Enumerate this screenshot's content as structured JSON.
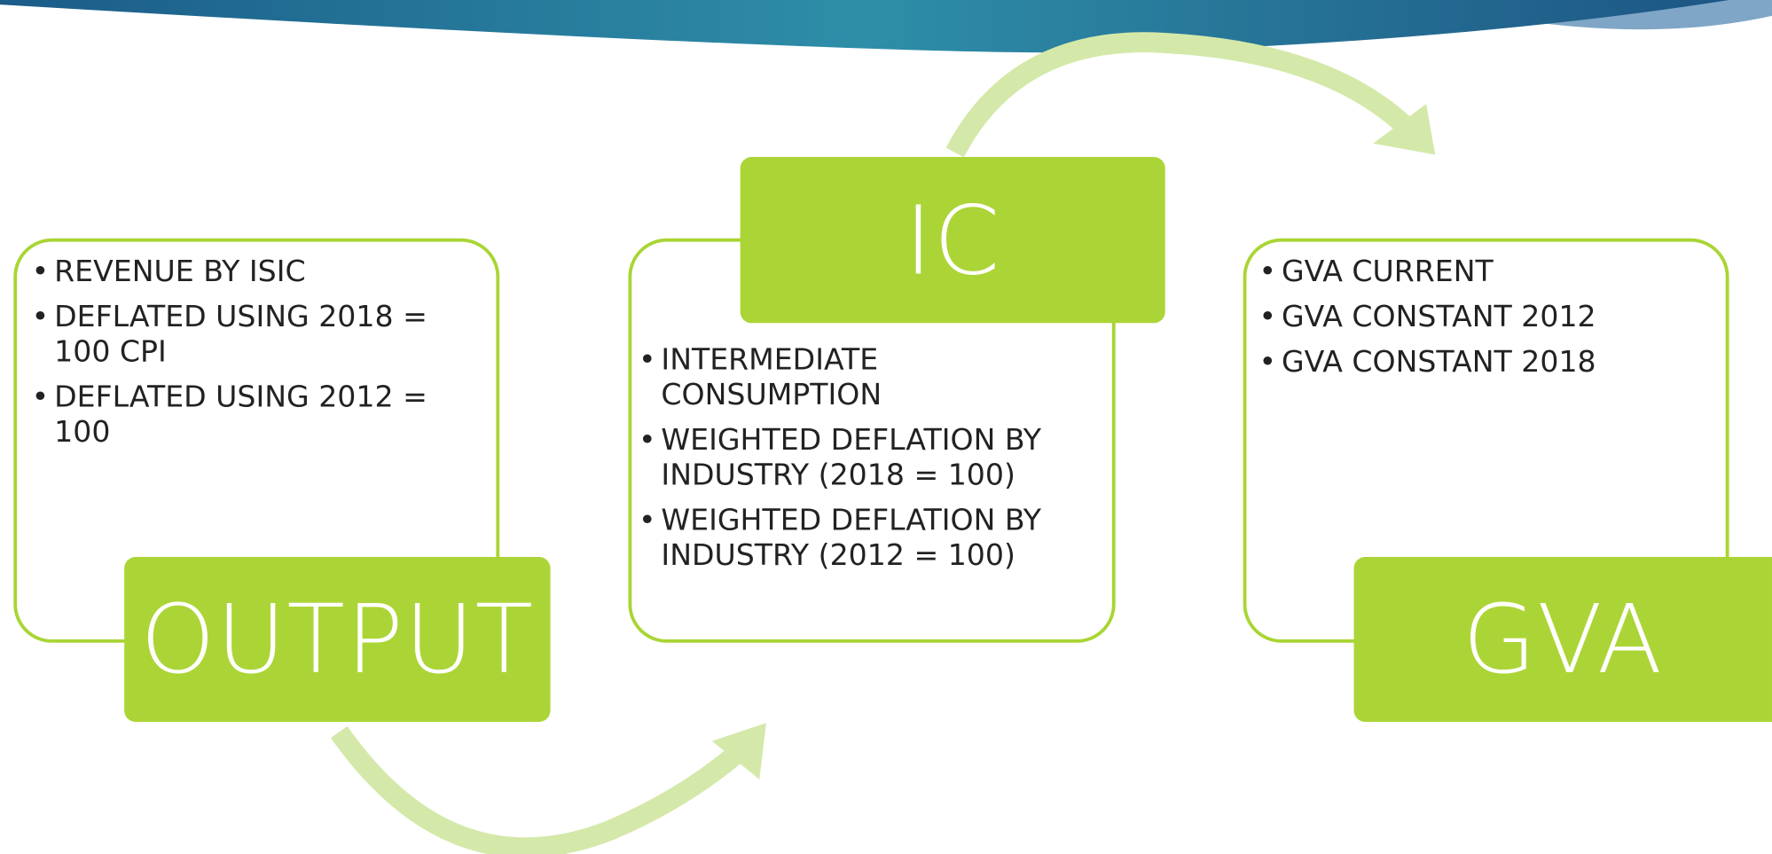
{
  "nodes": [
    {
      "label": "OUTPUT",
      "items": [
        "REVENUE BY ISIC",
        "DEFLATED USING 2018 = 100 CPI",
        "DEFLATED USING 2012 = 100"
      ]
    },
    {
      "label": "IC",
      "items": [
        "INTERMEDIATE CONSUMPTION",
        "WEIGHTED DEFLATION BY INDUSTRY (2018 = 100)",
        "WEIGHTED DEFLATION BY INDUSTRY (2012 = 100)"
      ]
    },
    {
      "label": "GVA",
      "items": [
        "GVA CURRENT",
        "GVA CONSTANT 2012",
        "GVA CONSTANT 2018"
      ]
    }
  ]
}
